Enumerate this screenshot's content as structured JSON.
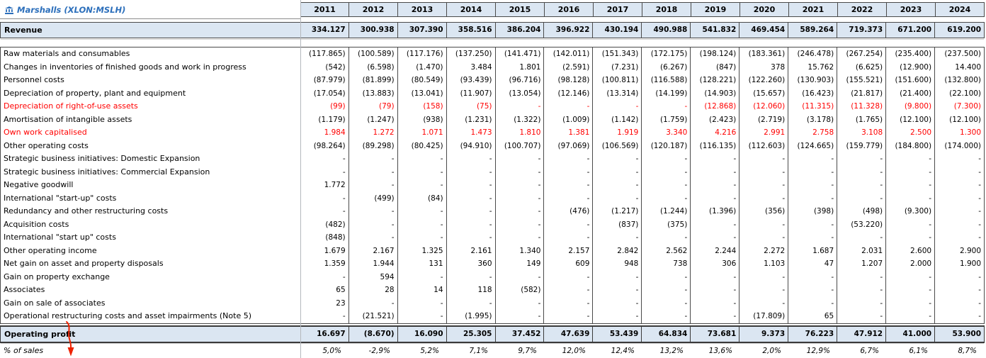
{
  "title": {
    "company": "Marshalls (XLON:MSLH)",
    "icon": "bank-icon"
  },
  "colors": {
    "accent_blue": "#2c6fbb",
    "band_bg": "#dbe6f2",
    "negative_highlight_red": "#ff0000",
    "annotation_arrow_red": "#ee2200",
    "border_dark": "#4a4a4a",
    "divider_gray": "#b4b8bd"
  },
  "table": {
    "years": [
      "2011",
      "2012",
      "2013",
      "2014",
      "2015",
      "2016",
      "2017",
      "2018",
      "2019",
      "2020",
      "2021",
      "2022",
      "2023",
      "2024"
    ],
    "revenue": {
      "label": "Revenue",
      "values": [
        "334.127",
        "300.938",
        "307.390",
        "358.516",
        "386.204",
        "396.922",
        "430.194",
        "490.988",
        "541.832",
        "469.454",
        "589.264",
        "719.373",
        "671.200",
        "619.200"
      ]
    },
    "rows": [
      {
        "label": "Raw materials and consumables",
        "values": [
          "(117.865)",
          "(100.589)",
          "(117.176)",
          "(137.250)",
          "(141.471)",
          "(142.011)",
          "(151.343)",
          "(172.175)",
          "(198.124)",
          "(183.361)",
          "(246.478)",
          "(267.254)",
          "(235.400)",
          "(237.500)"
        ]
      },
      {
        "label": "Changes in inventories of finished goods and work in progress",
        "values": [
          "(542)",
          "(6.598)",
          "(1.470)",
          "3.484",
          "1.801",
          "(2.591)",
          "(7.231)",
          "(6.267)",
          "(847)",
          "378",
          "15.762",
          "(6.625)",
          "(12.900)",
          "14.400"
        ]
      },
      {
        "label": "Personnel costs",
        "values": [
          "(87.979)",
          "(81.899)",
          "(80.549)",
          "(93.439)",
          "(96.716)",
          "(98.128)",
          "(100.811)",
          "(116.588)",
          "(128.221)",
          "(122.260)",
          "(130.903)",
          "(155.521)",
          "(151.600)",
          "(132.800)"
        ]
      },
      {
        "label": "Depreciation of property, plant and equipment",
        "values": [
          "(17.054)",
          "(13.883)",
          "(13.041)",
          "(11.907)",
          "(13.054)",
          "(12.146)",
          "(13.314)",
          "(14.199)",
          "(14.903)",
          "(15.657)",
          "(16.423)",
          "(21.817)",
          "(21.400)",
          "(22.100)"
        ]
      },
      {
        "label": "Depreciation of right-of-use assets",
        "red": true,
        "values": [
          "(99)",
          "(79)",
          "(158)",
          "(75)",
          "-",
          "-",
          "-",
          "-",
          "(12.868)",
          "(12.060)",
          "(11.315)",
          "(11.328)",
          "(9.800)",
          "(7.300)"
        ]
      },
      {
        "label": "Amortisation of intangible assets",
        "values": [
          "(1.179)",
          "(1.247)",
          "(938)",
          "(1.231)",
          "(1.322)",
          "(1.009)",
          "(1.142)",
          "(1.759)",
          "(2.423)",
          "(2.719)",
          "(3.178)",
          "(1.765)",
          "(12.100)",
          "(12.100)"
        ]
      },
      {
        "label": "Own work capitalised",
        "red": true,
        "values": [
          "1.984",
          "1.272",
          "1.071",
          "1.473",
          "1.810",
          "1.381",
          "1.919",
          "3.340",
          "4.216",
          "2.991",
          "2.758",
          "3.108",
          "2.500",
          "1.300"
        ]
      },
      {
        "label": "Other operating costs",
        "values": [
          "(98.264)",
          "(89.298)",
          "(80.425)",
          "(94.910)",
          "(100.707)",
          "(97.069)",
          "(106.569)",
          "(120.187)",
          "(116.135)",
          "(112.603)",
          "(124.665)",
          "(159.779)",
          "(184.800)",
          "(174.000)"
        ]
      },
      {
        "label": "Strategic business initiatives: Domestic Expansion",
        "values": [
          "-",
          "-",
          "-",
          "-",
          "-",
          "-",
          "-",
          "-",
          "-",
          "-",
          "-",
          "-",
          "-",
          "-"
        ]
      },
      {
        "label": "Strategic business initiatives: Commercial Expansion",
        "values": [
          "-",
          "-",
          "-",
          "-",
          "-",
          "-",
          "-",
          "-",
          "-",
          "-",
          "-",
          "-",
          "-",
          "-"
        ]
      },
      {
        "label": "Negative goodwill",
        "values": [
          "1.772",
          "-",
          "-",
          "-",
          "-",
          "-",
          "-",
          "-",
          "-",
          "-",
          "-",
          "-",
          "-",
          "-"
        ]
      },
      {
        "label": "International \"start-up\" costs",
        "values": [
          "-",
          "(499)",
          "(84)",
          "-",
          "-",
          "-",
          "-",
          "-",
          "-",
          "-",
          "-",
          "-",
          "-",
          "-"
        ]
      },
      {
        "label": "Redundancy and other restructuring costs",
        "values": [
          "-",
          "-",
          "-",
          "-",
          "-",
          "(476)",
          "(1.217)",
          "(1.244)",
          "(1.396)",
          "(356)",
          "(398)",
          "(498)",
          "(9.300)",
          "-"
        ]
      },
      {
        "label": "Acquisition costs",
        "values": [
          "(482)",
          "-",
          "-",
          "-",
          "-",
          "-",
          "(837)",
          "(375)",
          "-",
          "-",
          "-",
          "(53.220)",
          "-",
          "-"
        ]
      },
      {
        "label": "International \"start up\" costs",
        "values": [
          "(848)",
          "-",
          "-",
          "-",
          "-",
          "-",
          "-",
          "-",
          "-",
          "-",
          "-",
          "-",
          "-",
          "-"
        ]
      },
      {
        "label": "Other operating income",
        "values": [
          "1.679",
          "2.167",
          "1.325",
          "2.161",
          "1.340",
          "2.157",
          "2.842",
          "2.562",
          "2.244",
          "2.272",
          "1.687",
          "2.031",
          "2.600",
          "2.900"
        ]
      },
      {
        "label": "Net gain on asset and property disposals",
        "values": [
          "1.359",
          "1.944",
          "131",
          "360",
          "149",
          "609",
          "948",
          "738",
          "306",
          "1.103",
          "47",
          "1.207",
          "2.000",
          "1.900"
        ]
      },
      {
        "label": "Gain on property exchange",
        "values": [
          "-",
          "594",
          "-",
          "-",
          "-",
          "-",
          "-",
          "-",
          "-",
          "-",
          "-",
          "-",
          "-",
          "-"
        ]
      },
      {
        "label": "Associates",
        "values": [
          "65",
          "28",
          "14",
          "118",
          "(582)",
          "-",
          "-",
          "-",
          "-",
          "-",
          "-",
          "-",
          "-",
          "-"
        ]
      },
      {
        "label": "Gain on sale of associates",
        "values": [
          "23",
          "-",
          "-",
          "-",
          "-",
          "-",
          "-",
          "-",
          "-",
          "-",
          "-",
          "-",
          "-",
          "-"
        ]
      },
      {
        "label": "Operational restructuring costs and asset impairments (Note 5)",
        "values": [
          "-",
          "(21.521)",
          "-",
          "(1.995)",
          "-",
          "-",
          "-",
          "-",
          "-",
          "(17.809)",
          "65",
          "-",
          "-",
          "-"
        ]
      }
    ],
    "operating_profit": {
      "label": "Operating profit",
      "values": [
        "16.697",
        "(8.670)",
        "16.090",
        "25.305",
        "37.452",
        "47.639",
        "53.439",
        "64.834",
        "73.681",
        "9.373",
        "76.223",
        "47.912",
        "41.000",
        "53.900"
      ]
    },
    "percent_of_sales": {
      "label": "% of sales",
      "values": [
        "5,0%",
        "-2,9%",
        "5,2%",
        "7,1%",
        "9,7%",
        "12,0%",
        "12,4%",
        "13,2%",
        "13,6%",
        "2,0%",
        "12,9%",
        "6,7%",
        "6,1%",
        "8,7%"
      ]
    }
  },
  "annotations": {
    "arrow": "red-down-arrow"
  }
}
